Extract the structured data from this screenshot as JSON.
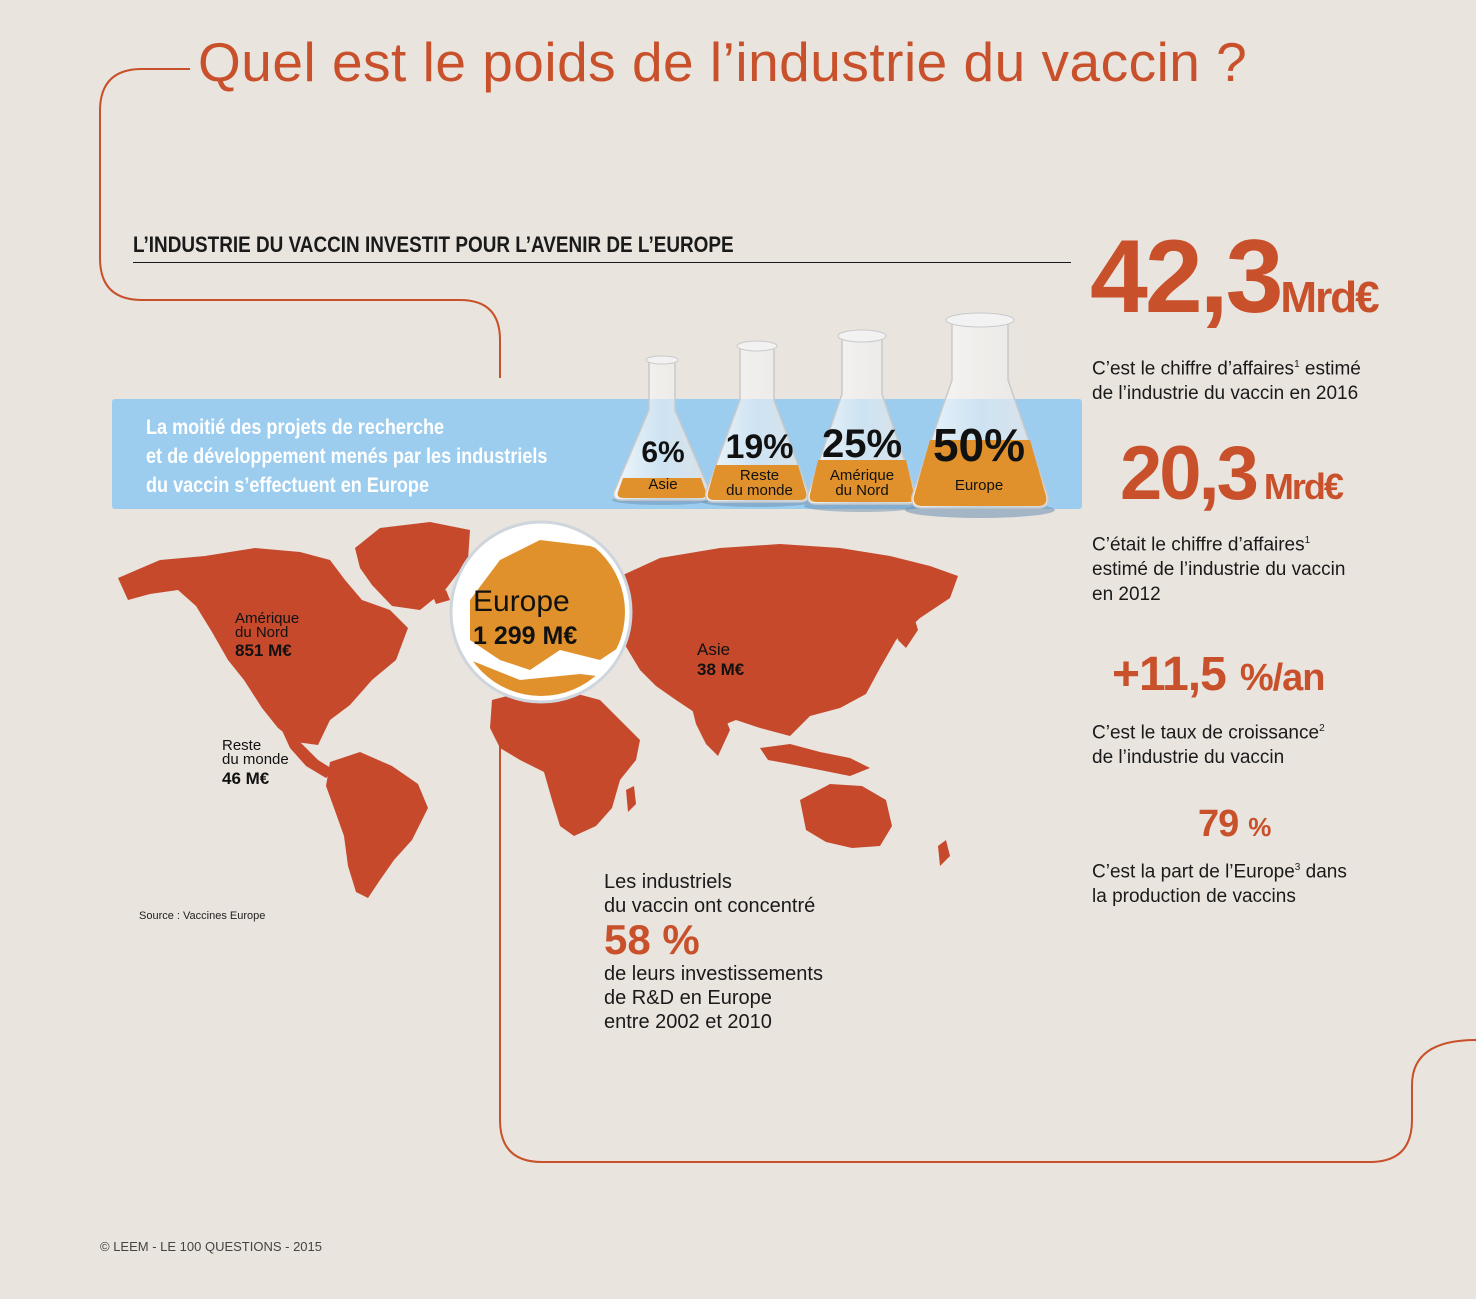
{
  "title": "Quel est le poids de l’industrie du vaccin ?",
  "section_title": "L’INDUSTRIE DU VACCIN INVESTIT POUR L’AVENIR DE L’EUROPE",
  "banner": {
    "lines": [
      "La moitié des projets de recherche",
      "et de développement menés par les industriels",
      "du vaccin s’effectuent en Europe"
    ]
  },
  "flasks": [
    {
      "pct": "6%",
      "label_lines": [
        "Asie"
      ],
      "fill": 0.06
    },
    {
      "pct": "19%",
      "label_lines": [
        "Reste",
        "du monde"
      ],
      "fill": 0.19
    },
    {
      "pct": "25%",
      "label_lines": [
        "Amérique",
        "du Nord"
      ],
      "fill": 0.25
    },
    {
      "pct": "50%",
      "label_lines": [
        "Europe"
      ],
      "fill": 0.5
    }
  ],
  "map": {
    "north_america": {
      "name_lines": [
        "Amérique",
        "du Nord"
      ],
      "value": "851 M€"
    },
    "rest_of_world": {
      "name_lines": [
        "Reste",
        "du monde"
      ],
      "value": "46 M€"
    },
    "asia": {
      "name": "Asie",
      "value": "38 M€"
    },
    "europe": {
      "name": "Europe",
      "value": "1 299 M€"
    }
  },
  "stats": [
    {
      "number": "42,3",
      "unit": "Mrd€",
      "lines": [
        "C’est le chiffre d’affaires",
        "1",
        " estimé",
        "de l’industrie du vaccin en 2016"
      ]
    },
    {
      "number": "20,3",
      "unit": "Mrd€",
      "lines": [
        "C’était le chiffre d’affaires",
        "1",
        "estimé de l’industrie du vaccin",
        "en 2012"
      ]
    },
    {
      "number": "+11,5",
      "unit": "%/an",
      "lines": [
        "C’est le taux de croissance",
        "2",
        "de l’industrie du vaccin"
      ]
    },
    {
      "number": "79",
      "unit": "%",
      "lines": [
        "C’est la part de l’Europe",
        "3",
        " dans",
        "la production de vaccins"
      ]
    }
  ],
  "investment": {
    "line1": "Les industriels",
    "line2": "du vaccin ont concentré",
    "big": "58 %",
    "line3": "de leurs investissements",
    "line4": "de R&D en Europe",
    "line5": "entre 2002 et 2010"
  },
  "source": "Source : Vaccines Europe",
  "copyright": "© LEEM - LE 100 QUESTIONS - 2015",
  "colors": {
    "background": "#e9e4de",
    "accent": "#c8502a",
    "map": "#c6492c",
    "banner": "#9ccdef",
    "liquid": "#e0912c"
  }
}
